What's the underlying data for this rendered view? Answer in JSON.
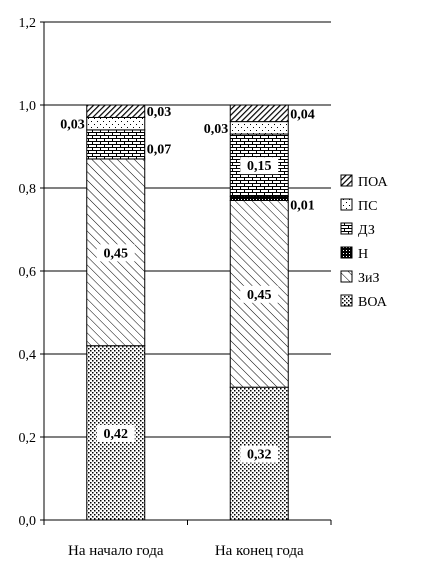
{
  "chart_data": {
    "type": "bar",
    "stacked": true,
    "title": "",
    "xlabel": "",
    "ylabel": "",
    "ylim": [
      0,
      1.2
    ],
    "yticks": [
      "0,0",
      "0,2",
      "0,4",
      "0,6",
      "0,8",
      "1,0",
      "1,2"
    ],
    "grid": true,
    "legend_position": "right",
    "categories": [
      "На начало года",
      "На конец года"
    ],
    "series": [
      {
        "name": "ВОА",
        "values": [
          0.42,
          0.32
        ],
        "labels": [
          "0,42",
          "0,32"
        ],
        "pattern": "dots"
      },
      {
        "name": "ЗиЗ",
        "values": [
          0.45,
          0.45
        ],
        "labels": [
          "0,45",
          "0,45"
        ],
        "pattern": "diag-light"
      },
      {
        "name": "Н",
        "values": [
          0.0,
          0.01
        ],
        "labels": [
          "",
          "0,01"
        ],
        "pattern": "dark"
      },
      {
        "name": "ДЗ",
        "values": [
          0.07,
          0.15
        ],
        "labels": [
          "0,07",
          "0,15"
        ],
        "pattern": "brick"
      },
      {
        "name": "ПС",
        "values": [
          0.03,
          0.03
        ],
        "labels": [
          "0,03",
          "0,03"
        ],
        "pattern": "sparse-dots"
      },
      {
        "name": "ПОА",
        "values": [
          0.03,
          0.04
        ],
        "labels": [
          "0,03",
          "0,04"
        ],
        "pattern": "diag-dark"
      }
    ]
  }
}
